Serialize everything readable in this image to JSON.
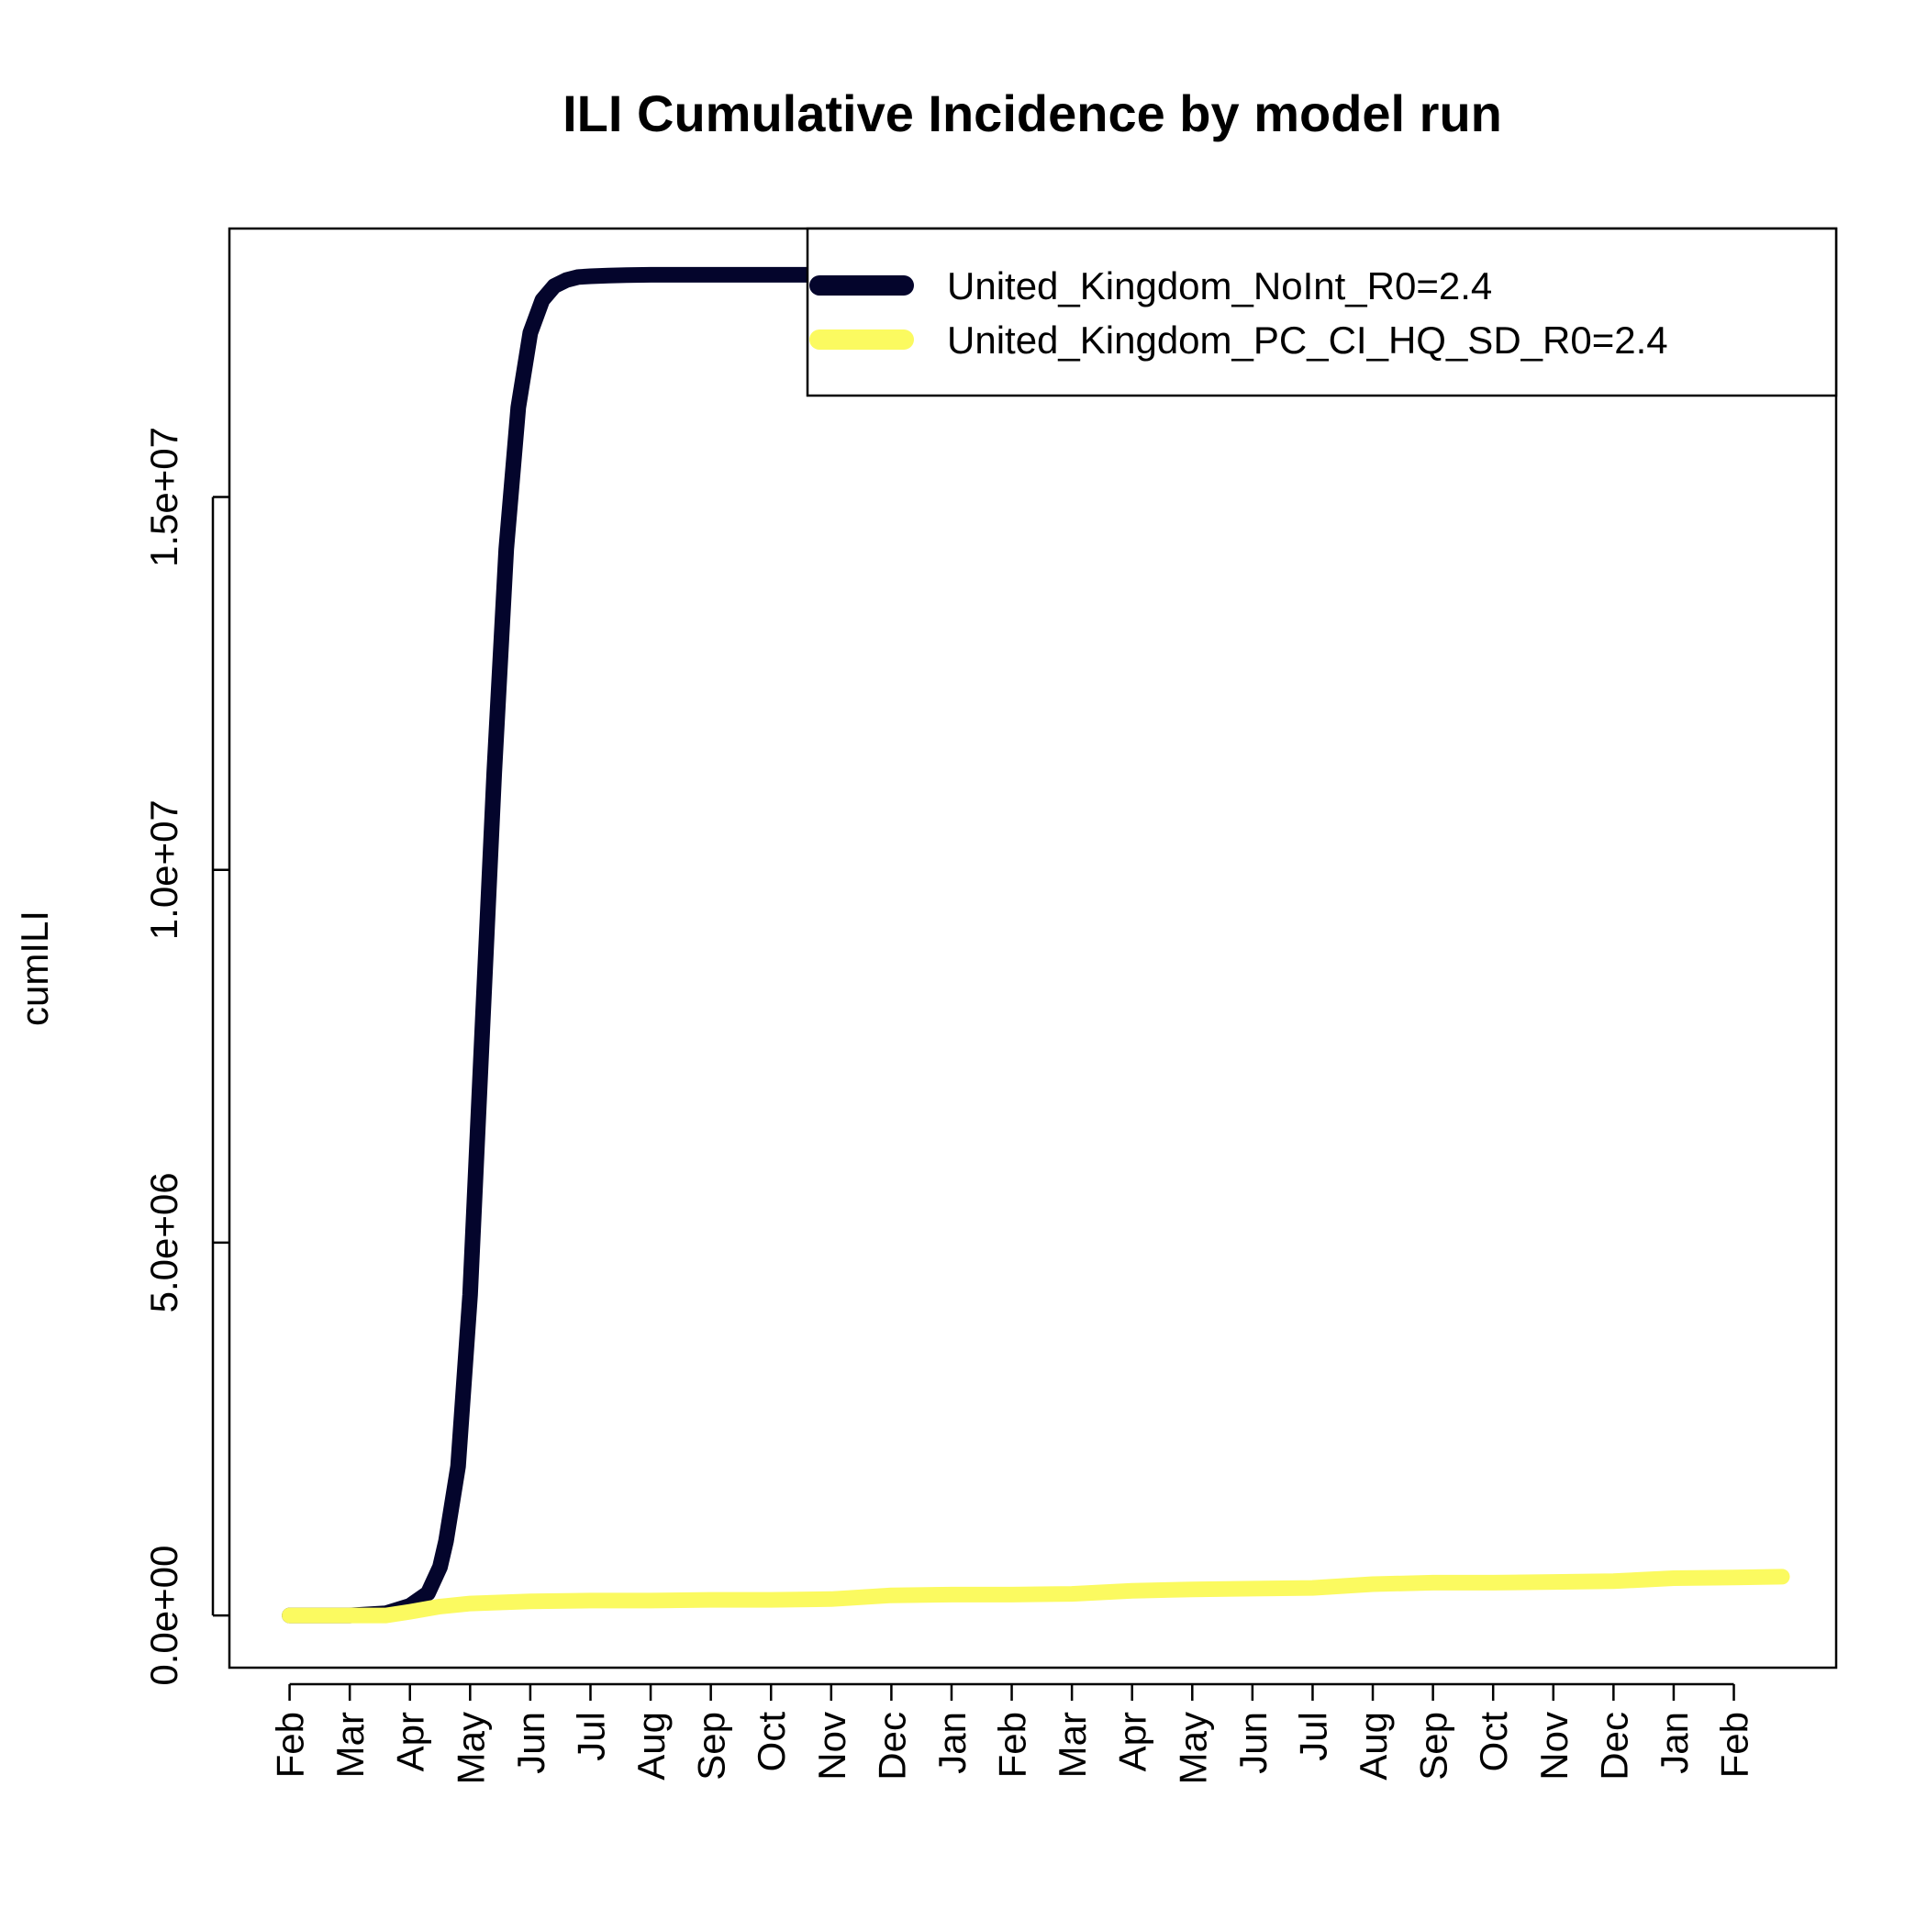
{
  "chart_data": {
    "type": "line",
    "title": "ILI Cumulative Incidence by model run",
    "xlabel": "",
    "ylabel": "cumILI",
    "ylim": [
      -700000,
      18600000
    ],
    "xlim": [
      -1,
      25.7
    ],
    "grid": false,
    "legend_position": "top-right",
    "x_ticks": [
      "Feb",
      "Mar",
      "Apr",
      "May",
      "Jun",
      "Jul",
      "Aug",
      "Sep",
      "Oct",
      "Nov",
      "Dec",
      "Jan",
      "Feb",
      "Mar",
      "Apr",
      "May",
      "Jun",
      "Jul",
      "Aug",
      "Sep",
      "Oct",
      "Nov",
      "Dec",
      "Jan",
      "Feb"
    ],
    "y_ticks": [
      {
        "value": 0,
        "label": "0.0e+00"
      },
      {
        "value": 5000000,
        "label": "5.0e+06"
      },
      {
        "value": 10000000,
        "label": "1.0e+07"
      },
      {
        "value": 15000000,
        "label": "1.5e+07"
      }
    ],
    "series": [
      {
        "name": "United_Kingdom_NoInt_R0=2.4",
        "color": "#04052c",
        "x": [
          0,
          1,
          1.6,
          2,
          2.3,
          2.5,
          2.6,
          2.8,
          3.0,
          3.2,
          3.4,
          3.6,
          3.8,
          4.0,
          4.2,
          4.4,
          4.6,
          4.8,
          5.0,
          5.3,
          5.6,
          6,
          7,
          8,
          9,
          10,
          11,
          12,
          13,
          14,
          15,
          16,
          17,
          18,
          19,
          20,
          21,
          22,
          23,
          24,
          24.8
        ],
        "y": [
          0,
          0,
          30000,
          130000,
          300000,
          650000,
          1000000,
          2000000,
          4300000,
          7800000,
          11300000,
          14300000,
          16200000,
          17200000,
          17640000,
          17830000,
          17910000,
          17950000,
          17960000,
          17970000,
          17975000,
          17980000,
          17980000,
          17980000,
          17980000,
          17980000,
          17980000,
          17980000,
          17980000,
          17980000,
          17980000,
          17980000,
          17980000,
          17980000,
          17980000,
          17980000,
          17980000,
          17980000,
          17980000,
          17980000,
          17980000
        ]
      },
      {
        "name": "United_Kingdom_PC_CI_HQ_SD_R0=2.4",
        "color": "#fbfa60",
        "x": [
          0,
          0.5,
          1,
          1.6,
          2,
          2.5,
          3,
          4,
          5,
          6,
          7,
          8,
          9,
          10,
          11,
          12,
          13,
          14,
          15,
          16,
          17,
          18,
          19,
          20,
          21,
          22,
          23,
          24,
          24.8
        ],
        "y": [
          0,
          0,
          0,
          0,
          50000,
          120000,
          160000,
          190000,
          200000,
          200000,
          210000,
          210000,
          220000,
          270000,
          280000,
          280000,
          290000,
          330000,
          350000,
          360000,
          370000,
          420000,
          440000,
          440000,
          450000,
          460000,
          500000,
          510000,
          520000
        ]
      }
    ]
  }
}
